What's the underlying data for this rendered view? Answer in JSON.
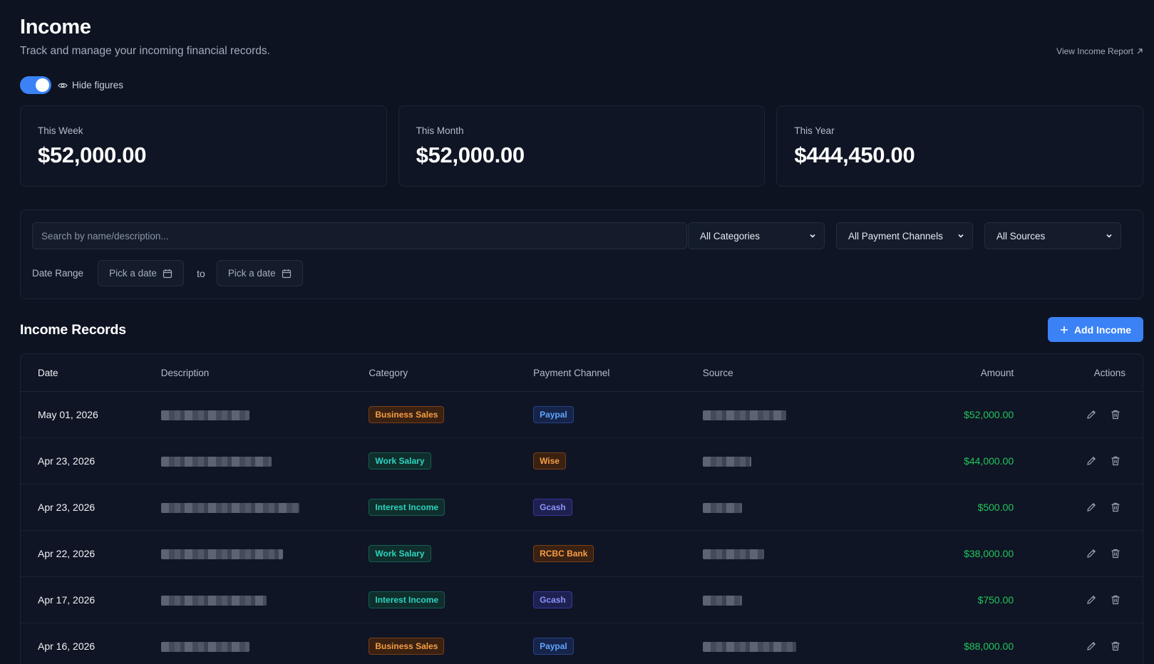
{
  "header": {
    "title": "Income",
    "subtitle": "Track and manage your incoming financial records.",
    "report_link": "View Income Report"
  },
  "toggle": {
    "label": "Hide figures",
    "on": true
  },
  "stats": [
    {
      "label": "This Week",
      "value": "$52,000.00"
    },
    {
      "label": "This Month",
      "value": "$52,000.00"
    },
    {
      "label": "This Year",
      "value": "$444,450.00"
    }
  ],
  "filters": {
    "search_placeholder": "Search by name/description...",
    "category": "All Categories",
    "payment_channel": "All Payment Channels",
    "source": "All Sources",
    "date_range_label": "Date Range",
    "date_from": "Pick a date",
    "date_to_sep": "to",
    "date_to": "Pick a date"
  },
  "records": {
    "title": "Income Records",
    "add_button": "Add Income",
    "columns": {
      "date": "Date",
      "description": "Description",
      "category": "Category",
      "payment_channel": "Payment Channel",
      "source": "Source",
      "amount": "Amount",
      "actions": "Actions"
    },
    "rows": [
      {
        "date": "May 01, 2026",
        "category": "Business Sales",
        "channel": "Paypal",
        "amount": "$52,000.00"
      },
      {
        "date": "Apr 23, 2026",
        "category": "Work Salary",
        "channel": "Wise",
        "amount": "$44,000.00"
      },
      {
        "date": "Apr 23, 2026",
        "category": "Interest Income",
        "channel": "Gcash",
        "amount": "$500.00"
      },
      {
        "date": "Apr 22, 2026",
        "category": "Work Salary",
        "channel": "RCBC Bank",
        "amount": "$38,000.00"
      },
      {
        "date": "Apr 17, 2026",
        "category": "Interest Income",
        "channel": "Gcash",
        "amount": "$750.00"
      },
      {
        "date": "Apr 16, 2026",
        "category": "Business Sales",
        "channel": "Paypal",
        "amount": "$88,000.00"
      }
    ]
  },
  "colors": {
    "background": "#0d1321",
    "accent": "#3b82f6",
    "amount_green": "#22c55e"
  }
}
